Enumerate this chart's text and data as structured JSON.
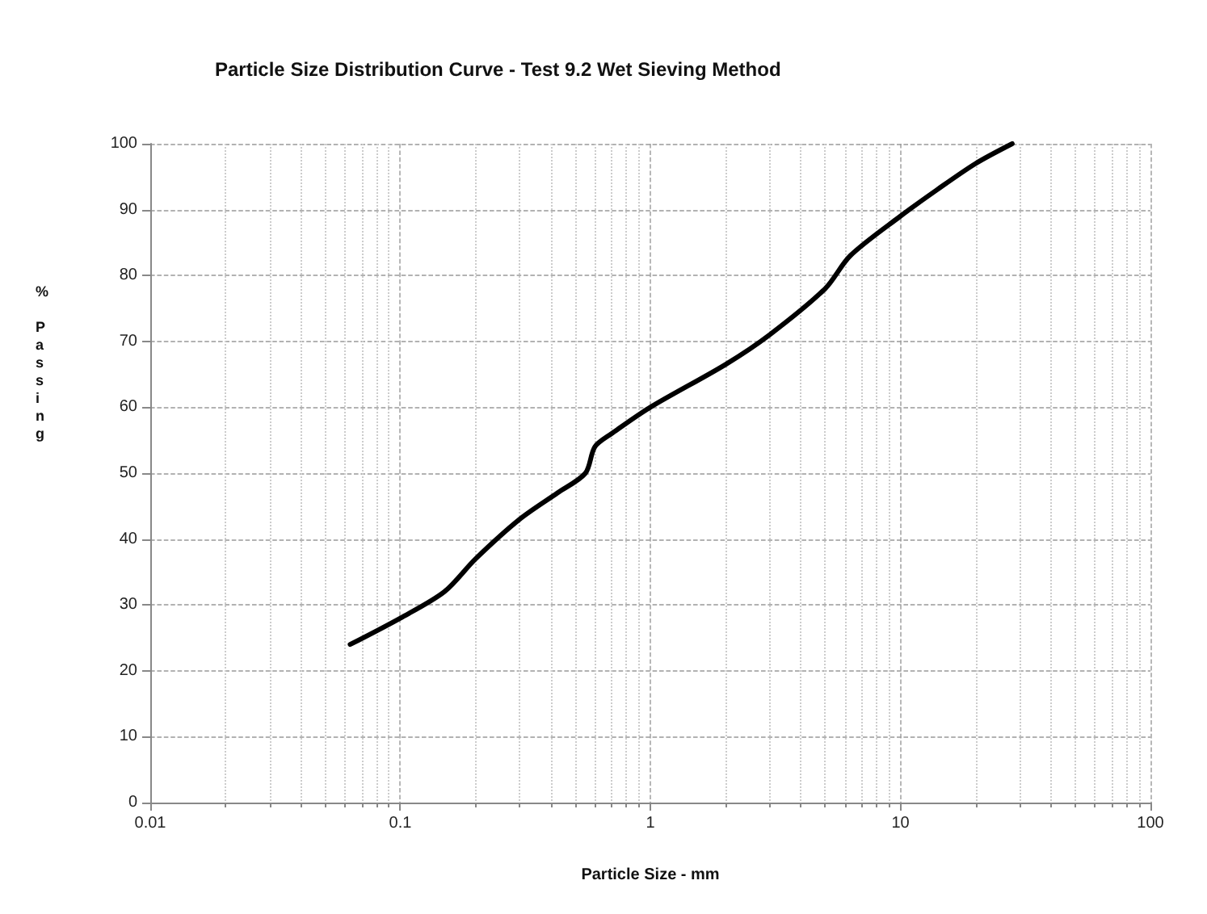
{
  "chart_data": {
    "type": "line",
    "title": "Particle Size Distribution Curve - Test 9.2 Wet Sieving Method",
    "xlabel": "Particle Size - mm",
    "ylabel": "% Passing",
    "series": [
      {
        "color": "#000000",
        "x": [
          0.063,
          0.1,
          0.15,
          0.2,
          0.3,
          0.425,
          0.55,
          0.6,
          0.7,
          1,
          2,
          3,
          5,
          6.3,
          10,
          14,
          20,
          28
        ],
        "values": [
          24,
          28,
          32,
          37,
          43,
          47,
          50,
          54,
          56,
          60,
          66.5,
          71,
          78,
          83,
          89,
          93,
          97,
          100
        ]
      }
    ],
    "log": "x",
    "xlim": [
      0.01,
      100
    ],
    "xticks": [
      0.01,
      0.1,
      1,
      10,
      100
    ],
    "ylim": [
      0,
      100
    ],
    "yticks": [
      0,
      10,
      20,
      30,
      40,
      50,
      60,
      70,
      80,
      90,
      100
    ],
    "grid": true,
    "marker": "none",
    "line_style": "solid"
  }
}
